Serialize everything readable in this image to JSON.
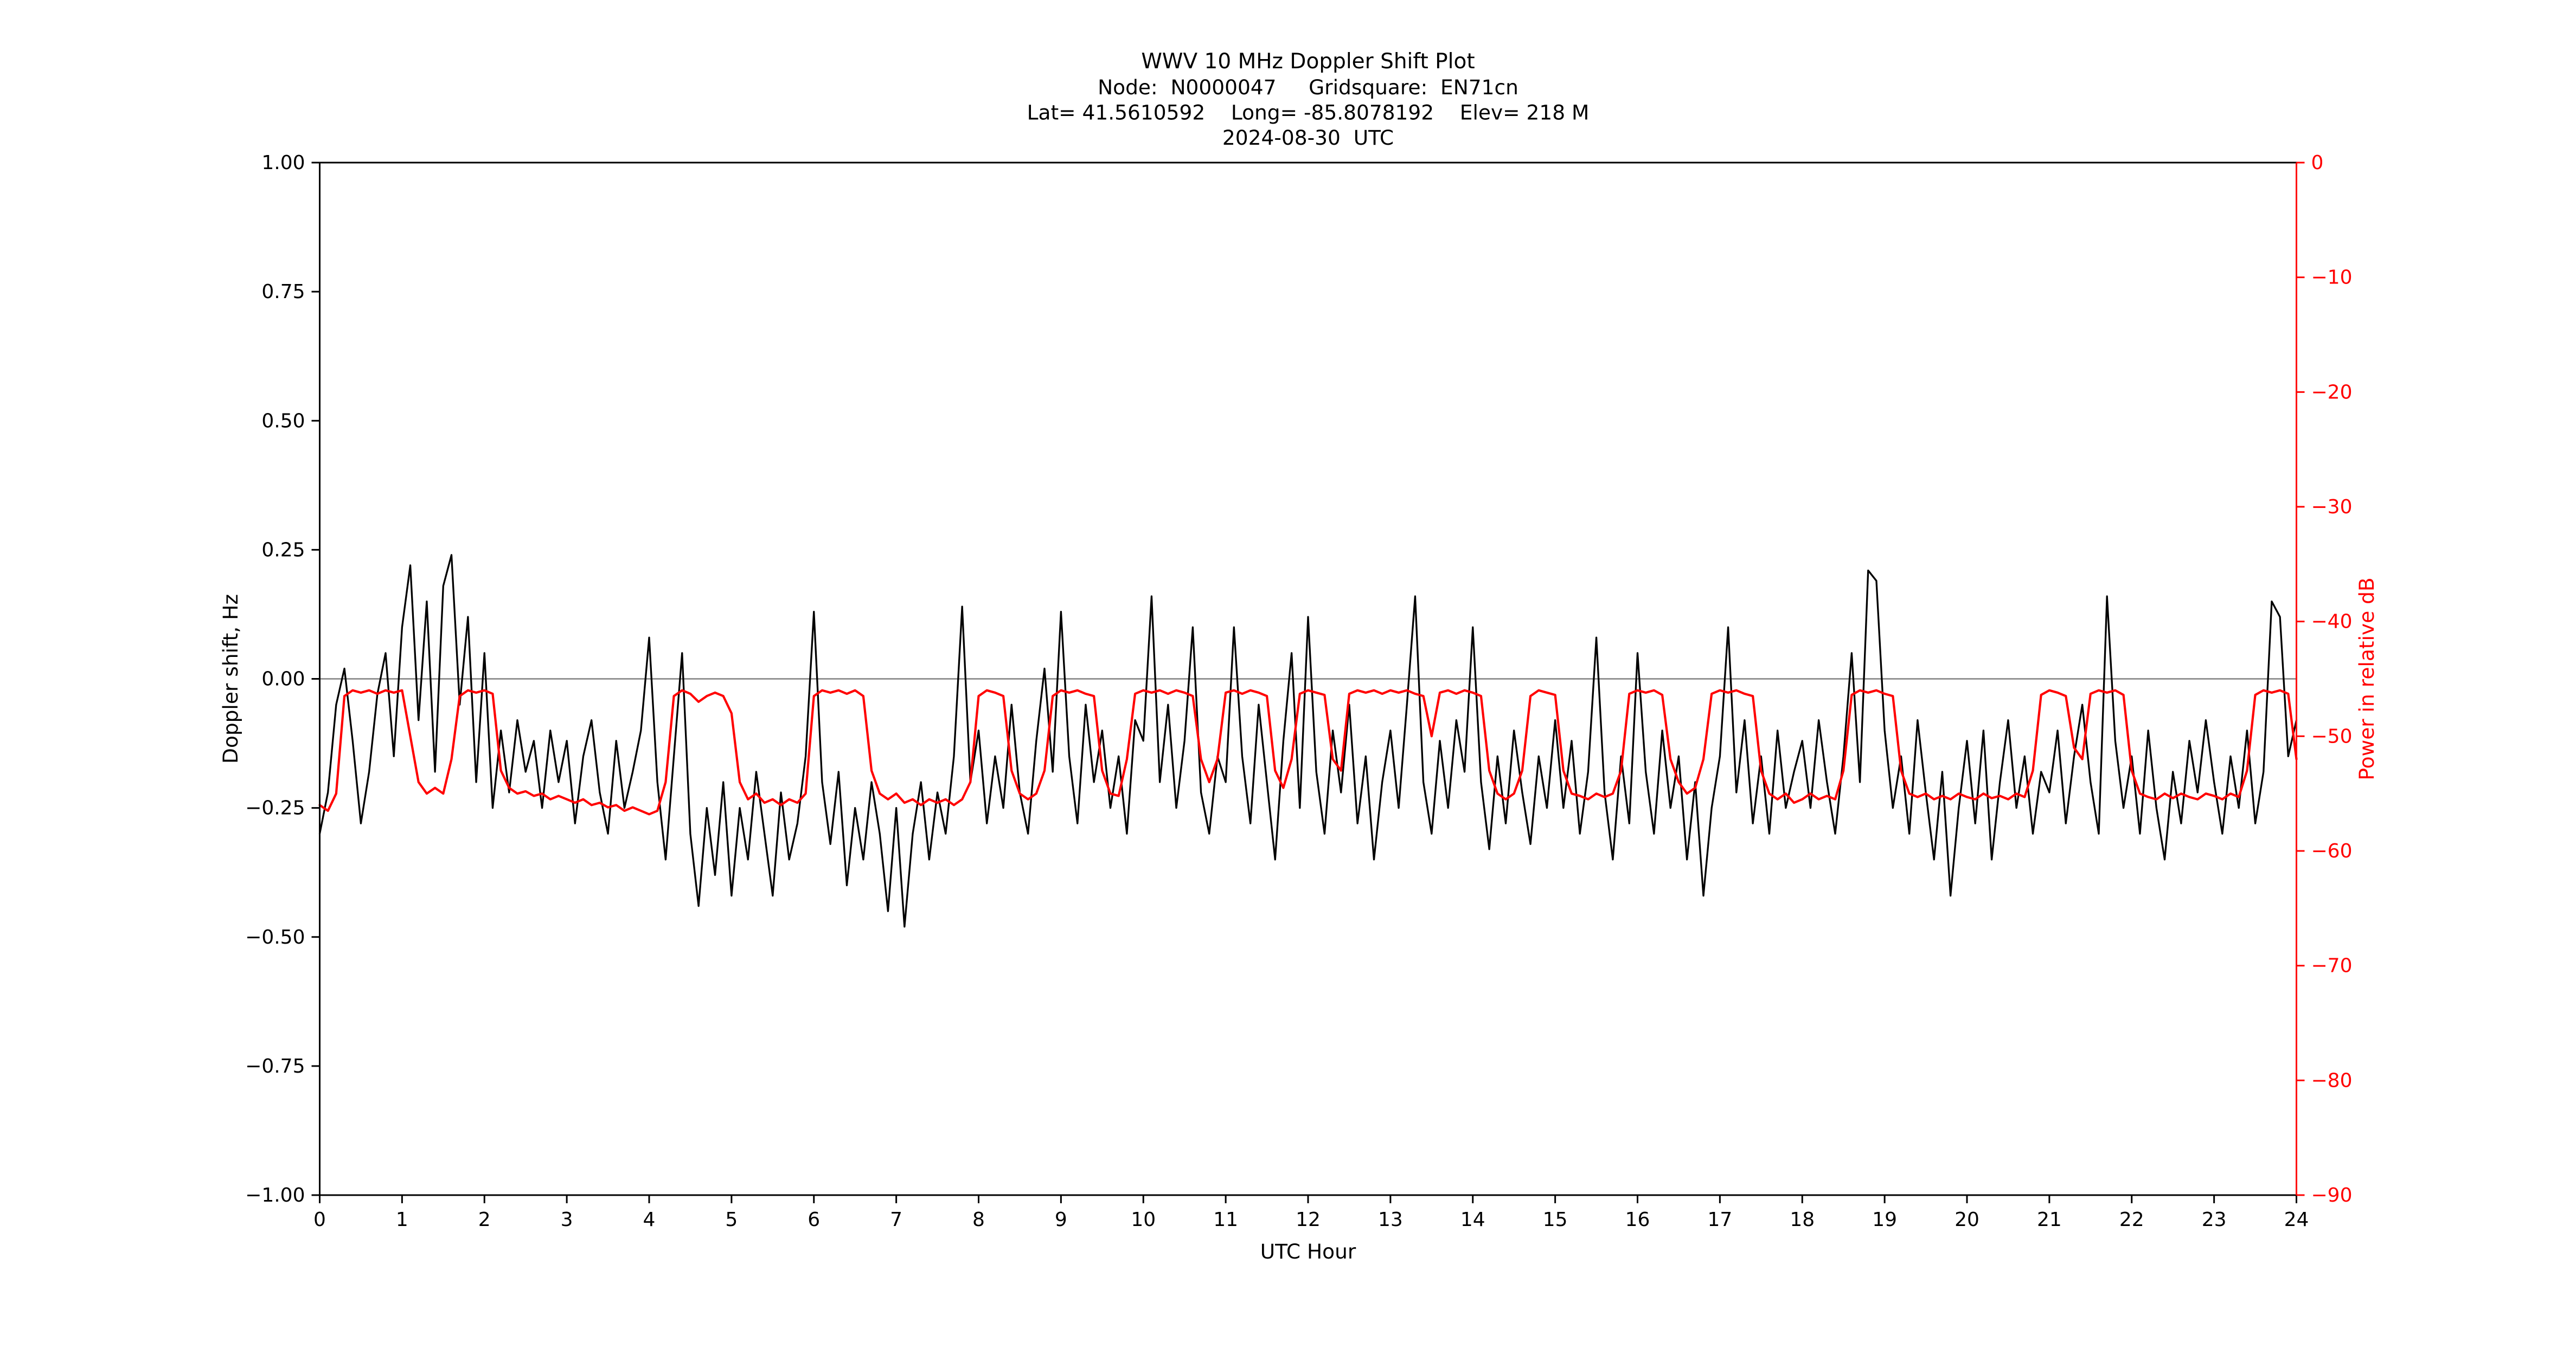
{
  "chart": {
    "background": "#ffffff"
  },
  "chart_data": {
    "type": "line",
    "title": "WWV 10 MHz Doppler Shift Plot",
    "subtitle_lines": [
      "Node:  N0000047     Gridsquare:  EN71cn",
      "Lat= 41.5610592    Long= -85.8078192    Elev= 218 M",
      "2024-08-30  UTC"
    ],
    "xlabel": "UTC Hour",
    "ylabel_left": "Doppler shift, Hz",
    "ylabel_right": "Power in relative dB",
    "x_range": [
      0,
      24
    ],
    "y_left_range": [
      -1.0,
      1.0
    ],
    "y_right_range": [
      -90,
      0
    ],
    "grid": false,
    "zero_line": true,
    "zero_line_color": "#808080",
    "left_axis_color": "#000000",
    "right_axis_color": "#ff0000",
    "x_tick_values": [
      0,
      1,
      2,
      3,
      4,
      5,
      6,
      7,
      8,
      9,
      10,
      11,
      12,
      13,
      14,
      15,
      16,
      17,
      18,
      19,
      20,
      21,
      22,
      23,
      24
    ],
    "x_tick_labels": [
      "0",
      "1",
      "2",
      "3",
      "4",
      "5",
      "6",
      "7",
      "8",
      "9",
      "10",
      "11",
      "12",
      "13",
      "14",
      "15",
      "16",
      "17",
      "18",
      "19",
      "20",
      "21",
      "22",
      "23",
      "24"
    ],
    "y_left_tick_values": [
      1.0,
      0.75,
      0.5,
      0.25,
      0.0,
      -0.25,
      -0.5,
      -0.75,
      -1.0
    ],
    "y_left_tick_labels": [
      "1.00",
      "0.75",
      "0.50",
      "0.25",
      "0.00",
      "−0.25",
      "−0.50",
      "−0.75",
      "−1.00"
    ],
    "y_right_tick_values": [
      0,
      -10,
      -20,
      -30,
      -40,
      -50,
      -60,
      -70,
      -80,
      -90
    ],
    "y_right_tick_labels": [
      "0",
      "−10",
      "−20",
      "−30",
      "−40",
      "−50",
      "−60",
      "−70",
      "−80",
      "−90"
    ],
    "x_start": 0,
    "x_step": 0.1,
    "series": [
      {
        "name": "Doppler shift (Hz)",
        "axis": "left",
        "color": "#000000",
        "values": [
          -0.3,
          -0.22,
          -0.05,
          0.02,
          -0.12,
          -0.28,
          -0.18,
          -0.03,
          0.05,
          -0.15,
          0.1,
          0.22,
          -0.08,
          0.15,
          -0.18,
          0.18,
          0.24,
          -0.05,
          0.12,
          -0.2,
          0.05,
          -0.25,
          -0.1,
          -0.22,
          -0.08,
          -0.18,
          -0.12,
          -0.25,
          -0.1,
          -0.2,
          -0.12,
          -0.28,
          -0.15,
          -0.08,
          -0.22,
          -0.3,
          -0.12,
          -0.25,
          -0.18,
          -0.1,
          0.08,
          -0.2,
          -0.35,
          -0.15,
          0.05,
          -0.3,
          -0.44,
          -0.25,
          -0.38,
          -0.2,
          -0.42,
          -0.25,
          -0.35,
          -0.18,
          -0.3,
          -0.42,
          -0.22,
          -0.35,
          -0.28,
          -0.15,
          0.13,
          -0.2,
          -0.32,
          -0.18,
          -0.4,
          -0.25,
          -0.35,
          -0.2,
          -0.3,
          -0.45,
          -0.25,
          -0.48,
          -0.3,
          -0.2,
          -0.35,
          -0.22,
          -0.3,
          -0.15,
          0.14,
          -0.2,
          -0.1,
          -0.28,
          -0.15,
          -0.25,
          -0.05,
          -0.22,
          -0.3,
          -0.12,
          0.02,
          -0.18,
          0.13,
          -0.15,
          -0.28,
          -0.05,
          -0.2,
          -0.1,
          -0.25,
          -0.15,
          -0.3,
          -0.08,
          -0.12,
          0.16,
          -0.2,
          -0.05,
          -0.25,
          -0.12,
          0.1,
          -0.22,
          -0.3,
          -0.15,
          -0.2,
          0.1,
          -0.15,
          -0.28,
          -0.05,
          -0.2,
          -0.35,
          -0.12,
          0.05,
          -0.25,
          0.12,
          -0.18,
          -0.3,
          -0.1,
          -0.22,
          -0.05,
          -0.28,
          -0.15,
          -0.35,
          -0.2,
          -0.1,
          -0.25,
          -0.05,
          0.16,
          -0.2,
          -0.3,
          -0.12,
          -0.25,
          -0.08,
          -0.18,
          0.1,
          -0.2,
          -0.33,
          -0.15,
          -0.28,
          -0.1,
          -0.22,
          -0.32,
          -0.15,
          -0.25,
          -0.08,
          -0.25,
          -0.12,
          -0.3,
          -0.18,
          0.08,
          -0.22,
          -0.35,
          -0.15,
          -0.28,
          0.05,
          -0.18,
          -0.3,
          -0.1,
          -0.25,
          -0.15,
          -0.35,
          -0.2,
          -0.42,
          -0.25,
          -0.15,
          0.1,
          -0.22,
          -0.08,
          -0.28,
          -0.15,
          -0.3,
          -0.1,
          -0.25,
          -0.18,
          -0.12,
          -0.25,
          -0.08,
          -0.2,
          -0.3,
          -0.15,
          0.05,
          -0.2,
          0.21,
          0.19,
          -0.1,
          -0.25,
          -0.15,
          -0.3,
          -0.08,
          -0.22,
          -0.35,
          -0.18,
          -0.42,
          -0.25,
          -0.12,
          -0.28,
          -0.1,
          -0.35,
          -0.2,
          -0.08,
          -0.25,
          -0.15,
          -0.3,
          -0.18,
          -0.22,
          -0.1,
          -0.28,
          -0.15,
          -0.05,
          -0.2,
          -0.3,
          0.16,
          -0.12,
          -0.25,
          -0.15,
          -0.3,
          -0.1,
          -0.25,
          -0.35,
          -0.18,
          -0.28,
          -0.12,
          -0.22,
          -0.08,
          -0.2,
          -0.3,
          -0.15,
          -0.25,
          -0.1,
          -0.28,
          -0.18,
          0.15,
          0.12,
          -0.15,
          -0.08
        ]
      },
      {
        "name": "Power (relative dB)",
        "axis": "right",
        "color": "#ff0000",
        "values": [
          -56,
          -56.5,
          -55,
          -46.5,
          -46,
          -46.2,
          -46,
          -46.3,
          -46,
          -46.2,
          -46,
          -50,
          -54,
          -55,
          -54.5,
          -55,
          -52,
          -46.5,
          -46,
          -46.2,
          -46,
          -46.3,
          -53,
          -54.5,
          -55,
          -54.8,
          -55.2,
          -55,
          -55.5,
          -55.2,
          -55.5,
          -55.8,
          -55.5,
          -56,
          -55.8,
          -56.2,
          -56,
          -56.5,
          -56.2,
          -56.5,
          -56.8,
          -56.5,
          -54,
          -46.5,
          -46,
          -46.3,
          -47,
          -46.5,
          -46.2,
          -46.5,
          -48,
          -54,
          -55.5,
          -55,
          -55.8,
          -55.5,
          -56,
          -55.5,
          -55.8,
          -55,
          -46.5,
          -46,
          -46.2,
          -46,
          -46.3,
          -46,
          -46.5,
          -53,
          -55,
          -55.5,
          -55,
          -55.8,
          -55.5,
          -56,
          -55.5,
          -55.8,
          -55.5,
          -56,
          -55.5,
          -54,
          -46.5,
          -46,
          -46.2,
          -46.5,
          -53,
          -55,
          -55.5,
          -55,
          -53,
          -46.5,
          -46,
          -46.2,
          -46,
          -46.3,
          -46.5,
          -53,
          -55,
          -55.2,
          -52,
          -46.3,
          -46,
          -46.2,
          -46,
          -46.3,
          -46,
          -46.2,
          -46.5,
          -52,
          -54,
          -52,
          -46.2,
          -46,
          -46.3,
          -46,
          -46.2,
          -46.5,
          -53,
          -54.5,
          -52,
          -46.3,
          -46,
          -46.2,
          -46.4,
          -52,
          -53,
          -46.3,
          -46,
          -46.2,
          -46,
          -46.3,
          -46,
          -46.2,
          -46,
          -46.3,
          -46.5,
          -50,
          -46.2,
          -46,
          -46.3,
          -46,
          -46.2,
          -46.5,
          -53,
          -55,
          -55.5,
          -55,
          -53,
          -46.5,
          -46,
          -46.2,
          -46.4,
          -53,
          -55,
          -55.2,
          -55.5,
          -55,
          -55.3,
          -55,
          -53,
          -46.3,
          -46,
          -46.2,
          -46,
          -46.4,
          -52,
          -54,
          -55,
          -54.5,
          -52,
          -46.3,
          -46,
          -46.2,
          -46,
          -46.3,
          -46.5,
          -53,
          -55,
          -55.5,
          -55,
          -55.8,
          -55.5,
          -55,
          -55.5,
          -55.2,
          -55.5,
          -53,
          -46.4,
          -46,
          -46.2,
          -46,
          -46.3,
          -46.5,
          -53,
          -55,
          -55.3,
          -55,
          -55.5,
          -55.2,
          -55.5,
          -55,
          -55.3,
          -55.5,
          -55,
          -55.4,
          -55.2,
          -55.5,
          -55,
          -55.3,
          -53,
          -46.4,
          -46,
          -46.2,
          -46.5,
          -51,
          -52,
          -46.3,
          -46,
          -46.2,
          -46,
          -46.4,
          -53,
          -55,
          -55.3,
          -55.5,
          -55,
          -55.4,
          -55,
          -55.3,
          -55.5,
          -55,
          -55.2,
          -55.5,
          -55,
          -55.3,
          -53,
          -46.4,
          -46,
          -46.2,
          -46,
          -46.3,
          -52
        ]
      }
    ]
  }
}
